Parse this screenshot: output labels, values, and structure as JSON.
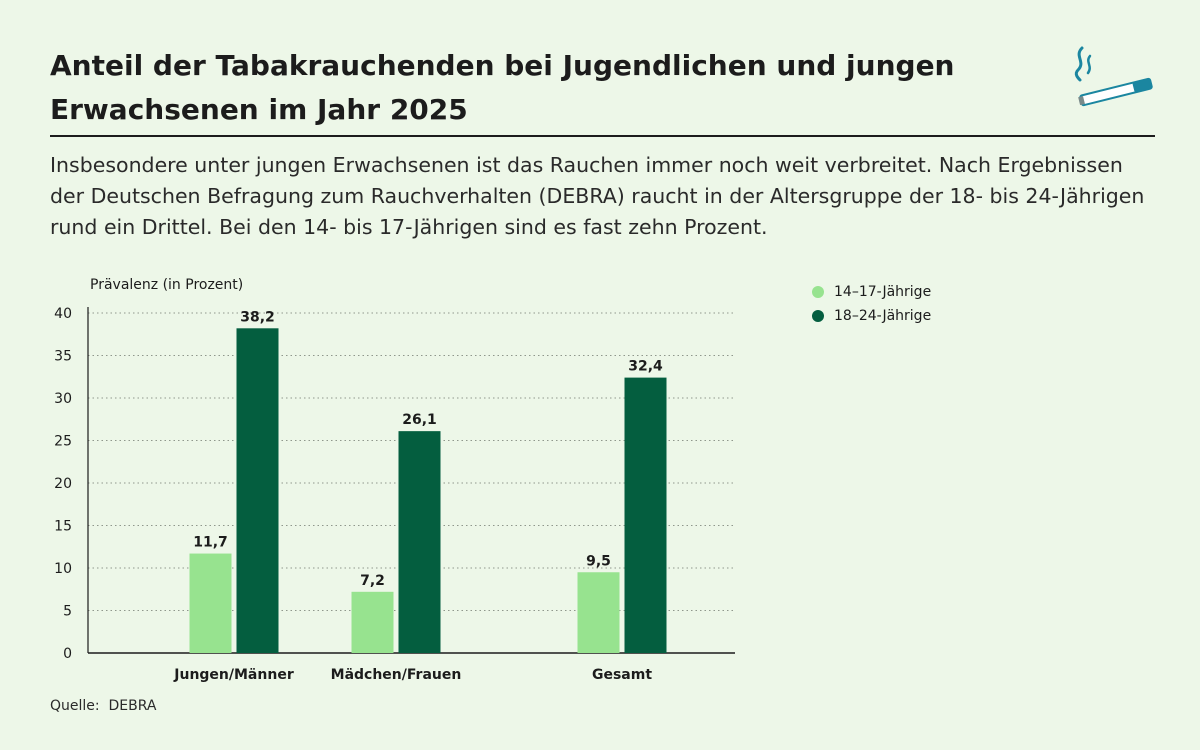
{
  "title": "Anteil der Tabakrauchenden bei Jugendlichen und jungen Erwachsenen im Jahr 2025",
  "intro": "Insbesondere unter jungen Erwachsenen ist das Rauchen immer noch weit verbreitet. Nach Ergebnissen der Deutschen Befragung zum Rauchverhalten (DEBRA) raucht in der Altersgruppe der 18- bis 24-Jährigen rund ein Drittel. Bei den 14- bis 17-Jährigen sind es fast zehn Prozent.",
  "source": "Quelle:  DEBRA",
  "icon": "cigarette-icon",
  "colors": {
    "background": "#edf7e8",
    "series_light": "#97e38f",
    "series_dark": "#045e3f",
    "icon_accent": "#1b86a0"
  },
  "chart_data": {
    "type": "bar",
    "ylabel": "Prävalenz (in Prozent)",
    "xlabel": "",
    "ylim": [
      0,
      40
    ],
    "yticks": [
      0,
      5,
      10,
      15,
      20,
      25,
      30,
      35,
      40
    ],
    "grid": true,
    "legend_position": "top-right",
    "categories": [
      "Jungen/Männer",
      "Mädchen/Frauen",
      "Gesamt"
    ],
    "series": [
      {
        "name": "14–17-Jährige",
        "values": [
          11.7,
          7.2,
          9.5
        ],
        "labels": [
          "11,7",
          "7,2",
          "9,5"
        ],
        "color": "#97e38f"
      },
      {
        "name": "18–24-Jährige",
        "values": [
          38.2,
          26.1,
          32.4
        ],
        "labels": [
          "38,2",
          "26,1",
          "32,4"
        ],
        "color": "#045e3f"
      }
    ]
  }
}
